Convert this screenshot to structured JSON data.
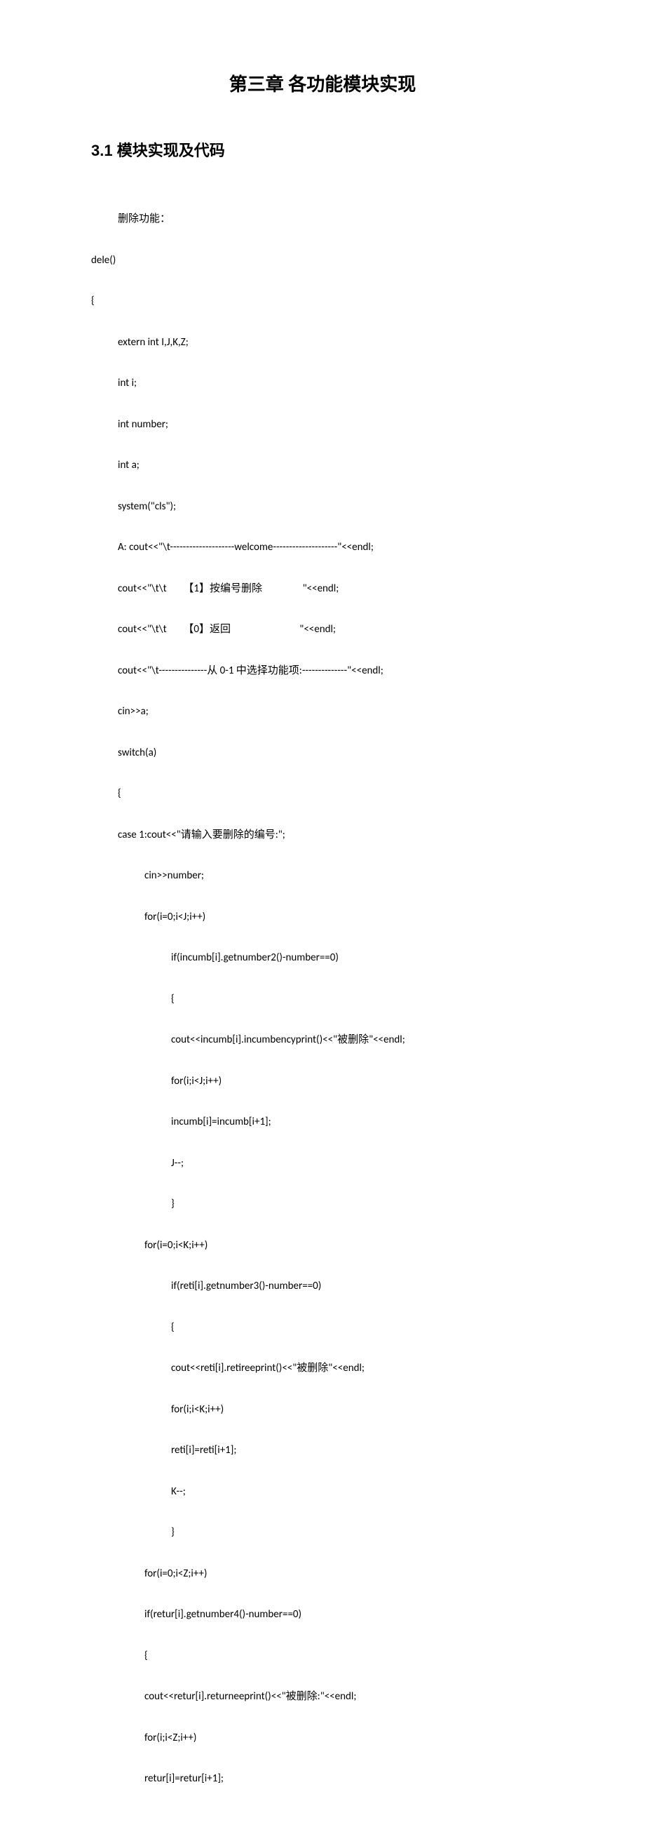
{
  "chapter_title": "第三章  各功能模块实现",
  "section_title": "3.1  模块实现及代码",
  "code": {
    "l0": "删除功能：",
    "l1": "dele()",
    "l2": "{",
    "l3": "extern int I,J,K,Z;",
    "l4": "int i;",
    "l5": "int number;",
    "l6": "int a;",
    "l7": "system(\"cls\");",
    "l8": "A: cout<<\"\\t--------------------welcome--------------------\"<<endl;",
    "l9": "cout<<\"\\t\\t       【1】按编号删除                 \"<<endl;",
    "l10": "cout<<\"\\t\\t       【0】返回                             \"<<endl;",
    "l11": "cout<<\"\\t---------------从 0-1 中选择功能项:--------------\"<<endl;",
    "l12": "cin>>a;",
    "l13": "switch(a)",
    "l14": "{",
    "l15": "case 1:cout<<\"请输入要删除的编号:\";",
    "l16": "cin>>number;",
    "l17": "for(i=0;i<J;i++)",
    "l18": "if(incumb[i].getnumber2()-number==0)",
    "l19": "{",
    "l20": "cout<<incumb[i].incumbencyprint()<<\"被删除\"<<endl;",
    "l21": "for(i;i<J;i++)",
    "l22": "incumb[i]=incumb[i+1];",
    "l23": "J--;",
    "l24": "}",
    "l25": "for(i=0;i<K;i++)",
    "l26": "if(reti[i].getnumber3()-number==0)",
    "l27": "{",
    "l28": "cout<<reti[i].retireeprint()<<\"被删除\"<<endl;",
    "l29": "for(i;i<K;i++)",
    "l30": "reti[i]=reti[i+1];",
    "l31": "K--;",
    "l32": "}",
    "l33": "for(i=0;i<Z;i++)",
    "l34": "if(retur[i].getnumber4()-number==0)",
    "l35": "{",
    "l36": "cout<<retur[i].returneeprint()<<\"被删除:\"<<endl;",
    "l37": "for(i;i<Z;i++)",
    "l38": "retur[i]=retur[i+1];"
  },
  "colors": {
    "background": "#ffffff",
    "text": "#000000"
  },
  "typography": {
    "chapter_title_fontsize": 26,
    "section_title_fontsize": 22,
    "code_fontsize": 15,
    "code_line_height": 1.95
  }
}
